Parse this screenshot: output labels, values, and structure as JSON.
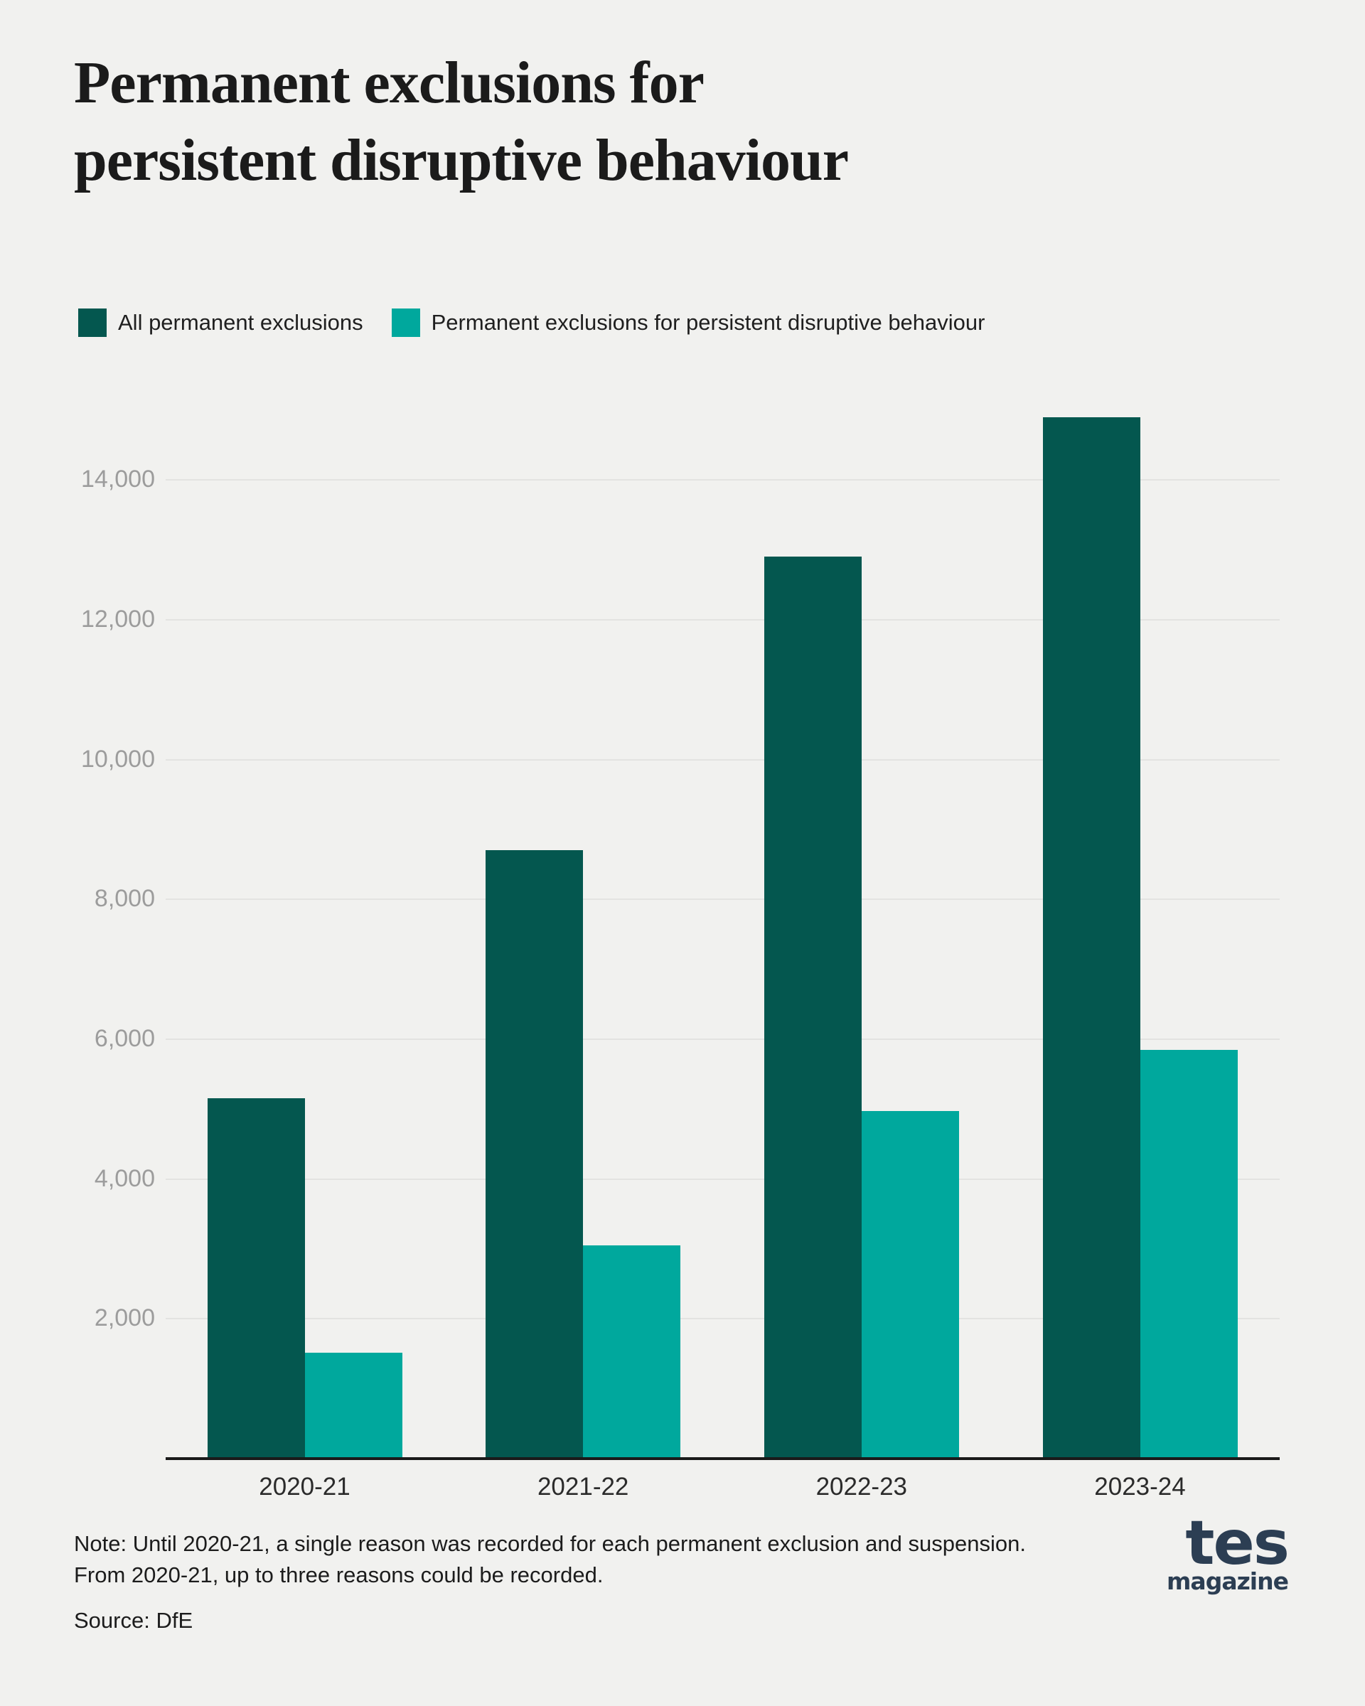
{
  "title": "Permanent exclusions for persistent disruptive behaviour",
  "note_line1": "Note: Until 2020-21, a single reason was recorded for each permanent exclusion and suspension.",
  "note_line2": "From 2020-21, up to three reasons could be recorded.",
  "source": "Source: DfE",
  "logo": {
    "main": "tes",
    "sub": "magazine"
  },
  "colors": {
    "background": "#f1f1ef",
    "series_dark": "#04574f",
    "series_teal": "#00a89d",
    "gridline": "#e3e3e1",
    "axis": "#1a1a1a",
    "ytick_text": "#9c9c9c",
    "xtick_text": "#2b2b2b",
    "logo": "#2c3e53"
  },
  "chart_data": {
    "type": "bar",
    "title": "Permanent exclusions for persistent disruptive behaviour",
    "categories": [
      "2020-21",
      "2021-22",
      "2022-23",
      "2023-24"
    ],
    "series": [
      {
        "name": "All permanent exclusions",
        "color": "#04574f",
        "values": [
          5150,
          8700,
          12900,
          14900
        ]
      },
      {
        "name": "Permanent exclusions for persistent disruptive behaviour",
        "color": "#00a89d",
        "values": [
          1520,
          3050,
          4970,
          5850
        ]
      }
    ],
    "xlabel": "",
    "ylabel": "",
    "ylim": [
      0,
      15100
    ],
    "yticks": [
      2000,
      4000,
      6000,
      8000,
      10000,
      12000,
      14000
    ],
    "ytick_labels": [
      "2,000",
      "4,000",
      "6,000",
      "8,000",
      "10,000",
      "12,000",
      "14,000"
    ],
    "grid": "horizontal",
    "legend_position": "top-left",
    "note": "Note: Until 2020-21, a single reason was recorded for each permanent exclusion and suspension. From 2020-21, up to three reasons could be recorded.",
    "source": "DfE"
  }
}
